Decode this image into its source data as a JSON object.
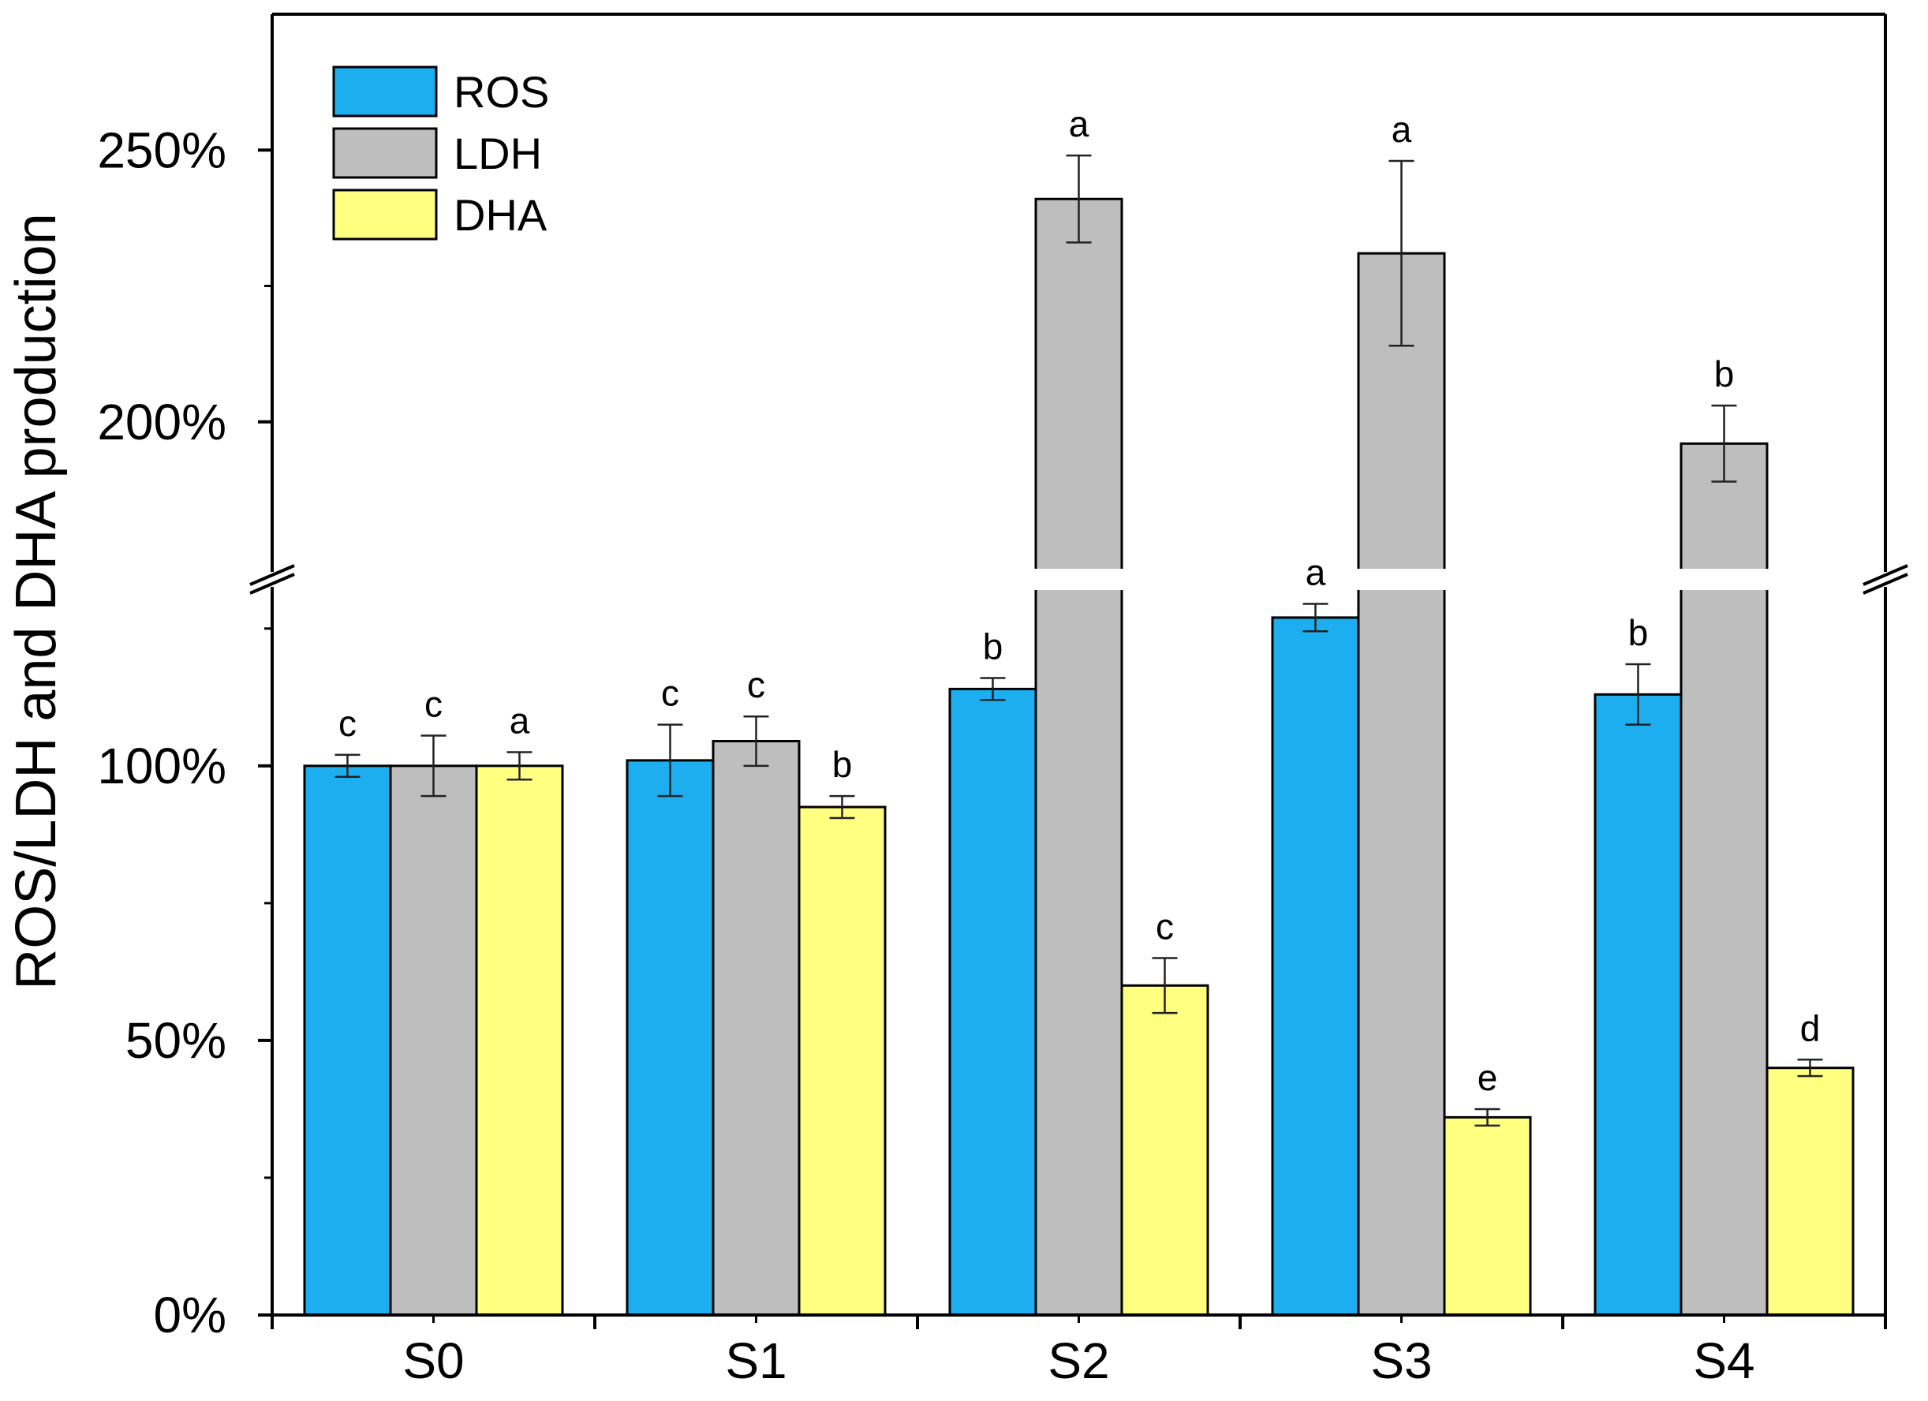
{
  "chart_data": {
    "type": "bar",
    "title": "",
    "xlabel": "",
    "ylabel": "ROS/LDH and DHA production",
    "categories": [
      "S0",
      "S1",
      "S2",
      "S3",
      "S4"
    ],
    "axis_break": {
      "lower_range": [
        0,
        130
      ],
      "upper_range": [
        175,
        275
      ]
    },
    "yticks": [
      {
        "value": 0,
        "label": "0%"
      },
      {
        "value": 50,
        "label": "50%"
      },
      {
        "value": 100,
        "label": "100%"
      },
      {
        "value": 200,
        "label": "200%"
      },
      {
        "value": 250,
        "label": "250%"
      }
    ],
    "legend_position": "top-left",
    "series": [
      {
        "name": "ROS",
        "color": "#1DAEF0",
        "values": [
          100,
          101,
          114,
          127,
          113
        ],
        "errors": [
          2,
          6.5,
          2,
          2.5,
          5.5
        ],
        "significance": [
          "c",
          "c",
          "b",
          "a",
          "b"
        ]
      },
      {
        "name": "LDH",
        "color": "#BEBEBE",
        "values": [
          100,
          104.5,
          241,
          231,
          196
        ],
        "errors": [
          5.5,
          4.5,
          8,
          17,
          7
        ],
        "significance": [
          "c",
          "c",
          "a",
          "a",
          "b"
        ]
      },
      {
        "name": "DHA",
        "color": "#FFFF80",
        "values": [
          100,
          92.5,
          60,
          36,
          45
        ],
        "errors": [
          2.5,
          2,
          5,
          1.5,
          1.5
        ],
        "significance": [
          "a",
          "b",
          "c",
          "e",
          "d"
        ]
      }
    ]
  }
}
